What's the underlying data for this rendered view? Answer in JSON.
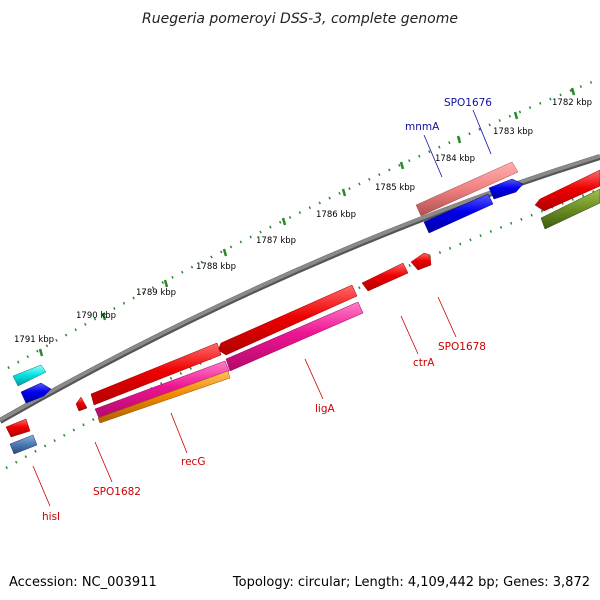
{
  "header": {
    "title": "Ruegeria pomeroyi DSS-3, complete genome"
  },
  "footer": {
    "accession": "Accession: NC_003911",
    "summary": "Topology: circular; Length: 4,109,442 bp; Genes: 3,872"
  },
  "ruler": {
    "labels": [
      "1782 kbp",
      "1783 kbp",
      "1784 kbp",
      "1785 kbp",
      "1786 kbp",
      "1787 kbp",
      "1788 kbp",
      "1789 kbp",
      "1790 kbp",
      "1791 kbp"
    ]
  },
  "genes": {
    "spo1676": "SPO1676",
    "mnma": "mnmA",
    "spo1678": "SPO1678",
    "ctra": "ctrA",
    "liga": "ligA",
    "recg": "recG",
    "spo1682": "SPO1682",
    "hisi": "hisI"
  },
  "colors": {
    "backbone": "#7a7a7a",
    "ruler_ticks": "#2a8a2a",
    "gene_red": "#ee0000",
    "gene_blue": "#0000ee",
    "gene_pink": "#ee1493",
    "gene_orange": "#f08a00",
    "gene_salmon": "#f08080",
    "gene_cyan": "#00e0e0",
    "gene_olive": "#6b8e23",
    "gene_steel": "#4a7ab0",
    "label_red": "#cc0000",
    "label_blue": "#1010a0"
  }
}
